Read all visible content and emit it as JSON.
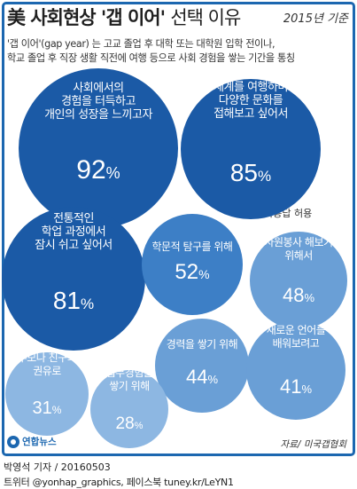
{
  "header": {
    "title_bold": "美 사회현상 '갭 이어'",
    "title_rest": "선택 이유",
    "year": "2015년 기준"
  },
  "description": {
    "line1": "'갭 이어'(gap year) 는 고교 졸업 후 대학 또는 대학원 입학 전이나,",
    "line2": "학교 졸업 후 직장 생활 직전에 여행 등으로 사회 경험을 쌓는 기간을 통칭"
  },
  "note": "중복응답 허용",
  "chart_data": {
    "type": "bubble",
    "title": "美 사회현상 '갭 이어' 선택 이유",
    "unit": "%",
    "items": [
      {
        "lines": [
          "사회에서의",
          "경험을 터득하고",
          "개인의 성장을 느끼고자"
        ],
        "value": 92,
        "color": "#1b5aa6"
      },
      {
        "lines": [
          "세계를 여행하며",
          "다양한 문화를",
          "접해보고 싶어서"
        ],
        "value": 85,
        "color": "#1b5aa6"
      },
      {
        "lines": [
          "전통적인",
          "학업 과정에서",
          "잠시 쉬고 싶어서"
        ],
        "value": 81,
        "color": "#1b5aa6"
      },
      {
        "lines": [
          "학문적 탐구를 위해"
        ],
        "value": 52,
        "color": "#3d7fc6"
      },
      {
        "lines": [
          "자원봉사 해보기",
          "위해서"
        ],
        "value": 48,
        "color": "#6a9fd6"
      },
      {
        "lines": [
          "경력을 쌓기 위해"
        ],
        "value": 44,
        "color": "#6a9fd6"
      },
      {
        "lines": [
          "새로운 언어를",
          "배워보려고"
        ],
        "value": 41,
        "color": "#6a9fd6"
      },
      {
        "lines": [
          "부모나 친구의",
          "권유로"
        ],
        "value": 31,
        "color": "#8db7e2"
      },
      {
        "lines": [
          "업무경험을",
          "쌓기 위해"
        ],
        "value": 28,
        "color": "#8db7e2"
      }
    ]
  },
  "footer": {
    "logo": "연합뉴스",
    "source": "자료/ 미국갭협회",
    "credit1": "박영석 기자 / 20160503",
    "credit2": "트위터 @yonhap_graphics, 페이스북 tuney.kr/LeYN1"
  }
}
